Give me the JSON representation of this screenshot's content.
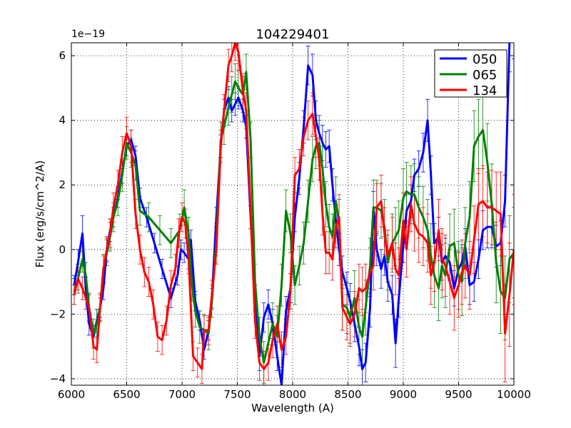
{
  "chart_data": {
    "type": "line",
    "title": "104229401",
    "xlabel": "Wavelength (A)",
    "ylabel": "Flux (erg/s/cm^2/A)",
    "offset_label": "1e−19",
    "xlim": [
      6000,
      10000
    ],
    "ylim": [
      -4.2,
      6.4
    ],
    "xticks": [
      6000,
      6500,
      7000,
      7500,
      8000,
      8500,
      9000,
      9500,
      10000
    ],
    "xtick_labels": [
      "6000",
      "6500",
      "7000",
      "7500",
      "8000",
      "8500",
      "9000",
      "9500",
      "10000"
    ],
    "yticks": [
      -4,
      -2,
      0,
      2,
      4,
      6
    ],
    "ytick_labels": [
      "−4",
      "−2",
      "0",
      "2",
      "4",
      "6"
    ],
    "grid": true,
    "legend_position": "top-right",
    "series": [
      {
        "name": "050",
        "color": "#0000ff",
        "x": [
          6025,
          6060,
          6100,
          6130,
          6160,
          6200,
          6230,
          6260,
          6290,
          6320,
          6350,
          6380,
          6420,
          6460,
          6500,
          6540,
          6580,
          6620,
          6680,
          6750,
          6820,
          6900,
          6960,
          6990,
          7020,
          7060,
          7080,
          7120,
          7160,
          7200,
          7240,
          7270,
          7310,
          7350,
          7380,
          7420,
          7450,
          7480,
          7510,
          7550,
          7580,
          7620,
          7660,
          7700,
          7740,
          7780,
          7820,
          7860,
          7900,
          7940,
          7980,
          8020,
          8060,
          8100,
          8140,
          8180,
          8210,
          8240,
          8270,
          8300,
          8330,
          8360,
          8390,
          8420,
          8450,
          8490,
          8520,
          8560,
          8600,
          8630,
          8660,
          8700,
          8730,
          8760,
          8800,
          8830,
          8860,
          8900,
          8930,
          8960,
          9000,
          9030,
          9070,
          9100,
          9140,
          9180,
          9220,
          9250,
          9280,
          9320,
          9350,
          9380,
          9420,
          9460,
          9500,
          9530,
          9560,
          9600,
          9640,
          9680,
          9720,
          9760,
          9800,
          9840,
          9880,
          9920,
          9960,
          10000
        ],
        "y": [
          -1.1,
          -0.4,
          0.5,
          -1.2,
          -2.3,
          -2.7,
          -2.2,
          -1.8,
          -1.2,
          0.0,
          0.6,
          1.0,
          1.6,
          2.4,
          3.2,
          3.4,
          2.9,
          1.6,
          1.0,
          0.2,
          -0.6,
          -1.5,
          -0.8,
          0.0,
          -0.1,
          -0.3,
          0.3,
          -1.6,
          -2.2,
          -3.1,
          -2.5,
          -1.5,
          1.0,
          3.2,
          4.3,
          4.7,
          4.3,
          4.5,
          4.7,
          4.3,
          3.8,
          1.0,
          -1.5,
          -3.3,
          -2.1,
          -1.7,
          -2.3,
          -3.3,
          -4.2,
          -1.9,
          -1.2,
          1.0,
          2.2,
          3.8,
          5.7,
          5.4,
          4.0,
          3.6,
          3.3,
          3.1,
          3.2,
          2.0,
          0.9,
          0.0,
          -0.7,
          -1.2,
          -1.6,
          -2.3,
          -3.0,
          -3.7,
          -3.5,
          -1.8,
          1.3,
          0.0,
          -0.6,
          -0.2,
          -1.0,
          -1.4,
          -2.9,
          -1.5,
          0.1,
          1.2,
          1.5,
          2.3,
          2.5,
          3.0,
          4.0,
          2.3,
          0.2,
          0.4,
          -0.4,
          -0.2,
          -0.4,
          -1.2,
          -0.6,
          -0.4,
          0.1,
          -1.1,
          -1.0,
          -0.3,
          0.6,
          0.7,
          0.7,
          0.1,
          0.2,
          1.5,
          6.4,
          6.9
        ],
        "err": [
          0.3,
          0.4,
          0.55,
          0.35,
          0.35,
          0.35,
          0.35,
          0.3,
          0.35,
          0.35,
          0.35,
          0.3,
          0.3,
          0.35,
          0.3,
          0.3,
          0.3,
          0.3,
          0.3,
          0.3,
          0.3,
          0.3,
          0.3,
          0.3,
          0.3,
          0.3,
          0.3,
          0.3,
          0.3,
          0.3,
          0.3,
          0.3,
          0.3,
          0.35,
          0.35,
          0.35,
          0.35,
          0.35,
          0.35,
          0.35,
          0.35,
          0.35,
          0.4,
          0.45,
          0.45,
          0.45,
          0.45,
          0.45,
          0.45,
          0.45,
          0.45,
          0.45,
          0.5,
          0.5,
          0.6,
          0.65,
          0.6,
          0.55,
          0.55,
          0.55,
          0.5,
          0.5,
          0.5,
          0.5,
          0.5,
          0.5,
          0.55,
          0.55,
          0.6,
          0.6,
          0.6,
          0.6,
          0.5,
          0.5,
          0.6,
          0.6,
          0.6,
          0.6,
          0.75,
          0.6,
          0.5,
          0.5,
          0.5,
          0.5,
          0.55,
          0.6,
          0.65,
          0.6,
          0.6,
          0.6,
          0.55,
          0.55,
          0.55,
          0.55,
          0.55,
          0.55,
          0.55,
          0.6,
          0.6,
          0.6,
          0.6,
          0.65,
          0.65,
          0.65,
          0.7,
          0.8,
          0.9,
          1.0
        ]
      },
      {
        "name": "065",
        "color": "#008000",
        "x": [
          6025,
          6060,
          6100,
          6130,
          6160,
          6200,
          6230,
          6260,
          6290,
          6320,
          6350,
          6380,
          6420,
          6460,
          6500,
          6540,
          6580,
          6620,
          6700,
          6800,
          6900,
          6980,
          7020,
          7060,
          7090,
          7120,
          7160,
          7200,
          7240,
          7270,
          7310,
          7350,
          7380,
          7420,
          7450,
          7480,
          7510,
          7550,
          7580,
          7620,
          7660,
          7700,
          7740,
          7780,
          7820,
          7860,
          7900,
          7940,
          7980,
          8020,
          8060,
          8100,
          8140,
          8180,
          8210,
          8240,
          8270,
          8300,
          8330,
          8360,
          8390,
          8420,
          8450,
          8490,
          8520,
          8560,
          8600,
          8630,
          8660,
          8700,
          8730,
          8760,
          8800,
          8830,
          8860,
          8900,
          8930,
          8960,
          9000,
          9030,
          9070,
          9100,
          9140,
          9180,
          9220,
          9250,
          9280,
          9320,
          9350,
          9380,
          9420,
          9460,
          9500,
          9530,
          9560,
          9600,
          9640,
          9680,
          9720,
          9760,
          9800,
          9840,
          9880,
          9920,
          9960,
          10000
        ],
        "y": [
          -1.3,
          -0.9,
          -0.3,
          -0.8,
          -1.8,
          -2.6,
          -2.3,
          -1.8,
          -0.6,
          -0.1,
          0.4,
          1.0,
          1.5,
          2.3,
          3.3,
          3.0,
          2.6,
          1.2,
          1.0,
          0.6,
          0.2,
          0.6,
          1.3,
          0.5,
          -1.1,
          -1.9,
          -2.4,
          -2.5,
          -2.6,
          -1.6,
          0.3,
          3.4,
          3.8,
          4.4,
          4.8,
          5.2,
          5.0,
          4.8,
          5.5,
          3.4,
          -1.0,
          -2.7,
          -3.5,
          -2.9,
          -2.3,
          -2.7,
          -1.1,
          1.2,
          0.5,
          -1.1,
          -0.5,
          0.2,
          1.5,
          2.8,
          3.2,
          3.3,
          2.5,
          1.4,
          0.7,
          0.4,
          1.5,
          0.8,
          -1.7,
          -1.8,
          -2.1,
          -1.5,
          -2.4,
          -2.7,
          -1.8,
          -0.5,
          1.3,
          1.3,
          1.2,
          0.7,
          -0.4,
          0.2,
          0.4,
          0.6,
          1.6,
          1.8,
          1.7,
          1.7,
          1.3,
          1.0,
          0.6,
          -0.2,
          -0.8,
          -1.2,
          -0.5,
          -0.8,
          0.1,
          0.2,
          -0.8,
          -1.0,
          0.2,
          1.0,
          3.2,
          3.5,
          3.7,
          2.7,
          1.4,
          -0.4,
          -1.3,
          -1.5,
          -0.3,
          -0.1
        ],
        "err": [
          0.4,
          0.45,
          0.4,
          0.4,
          0.45,
          0.45,
          0.45,
          0.45,
          0.45,
          0.4,
          0.45,
          0.45,
          0.45,
          0.5,
          0.5,
          0.45,
          0.45,
          0.45,
          0.45,
          0.45,
          0.45,
          0.5,
          0.55,
          0.5,
          0.5,
          0.5,
          0.5,
          0.5,
          0.5,
          0.5,
          0.5,
          0.55,
          0.55,
          0.55,
          0.55,
          0.55,
          0.55,
          0.55,
          0.55,
          0.55,
          0.55,
          0.6,
          0.65,
          0.65,
          0.65,
          0.65,
          0.65,
          0.65,
          0.6,
          0.6,
          0.6,
          0.65,
          0.65,
          0.7,
          0.7,
          0.7,
          0.7,
          0.7,
          0.7,
          0.7,
          0.75,
          0.75,
          0.8,
          0.8,
          0.8,
          0.85,
          0.85,
          0.85,
          0.85,
          0.85,
          0.85,
          0.85,
          0.85,
          0.85,
          0.85,
          0.9,
          0.9,
          0.9,
          0.9,
          0.9,
          0.9,
          0.95,
          0.95,
          0.95,
          0.95,
          1.0,
          1.0,
          1.0,
          1.0,
          1.0,
          1.0,
          1.05,
          1.05,
          1.05,
          1.1,
          1.1,
          1.1,
          1.15,
          1.2,
          1.2,
          1.25,
          1.25,
          1.3,
          1.3,
          1.35,
          1.4
        ]
      },
      {
        "name": "134",
        "color": "#ff0000",
        "x": [
          6025,
          6060,
          6100,
          6130,
          6160,
          6200,
          6230,
          6260,
          6290,
          6320,
          6350,
          6380,
          6420,
          6460,
          6500,
          6540,
          6580,
          6620,
          6660,
          6700,
          6740,
          6780,
          6820,
          6860,
          6900,
          6940,
          6970,
          7000,
          7030,
          7060,
          7100,
          7140,
          7180,
          7200,
          7240,
          7270,
          7310,
          7350,
          7380,
          7420,
          7450,
          7480,
          7510,
          7550,
          7580,
          7620,
          7660,
          7700,
          7740,
          7780,
          7820,
          7860,
          7900,
          7940,
          7980,
          8020,
          8060,
          8100,
          8140,
          8180,
          8210,
          8240,
          8270,
          8300,
          8330,
          8360,
          8390,
          8420,
          8450,
          8490,
          8520,
          8560,
          8600,
          8630,
          8660,
          8700,
          8730,
          8760,
          8800,
          8830,
          8860,
          8900,
          8930,
          8960,
          9000,
          9030,
          9070,
          9100,
          9140,
          9180,
          9220,
          9250,
          9280,
          9320,
          9350,
          9380,
          9420,
          9460,
          9500,
          9530,
          9560,
          9600,
          9640,
          9680,
          9720,
          9760,
          9800,
          9840,
          9880,
          9920,
          9960,
          10000
        ],
        "y": [
          -1.4,
          -0.9,
          -1.2,
          -1.5,
          -1.8,
          -3.0,
          -3.1,
          -1.8,
          -0.6,
          0.0,
          0.5,
          1.3,
          2.0,
          3.0,
          3.6,
          3.2,
          1.1,
          0.0,
          -0.7,
          -1.0,
          -1.7,
          -2.7,
          -2.8,
          -2.2,
          -1.1,
          -0.6,
          0.5,
          1.0,
          0.8,
          -0.3,
          -3.3,
          -3.5,
          -3.7,
          -2.5,
          -2.5,
          -1.4,
          0.0,
          3.2,
          4.3,
          5.7,
          6.0,
          6.4,
          6.1,
          4.9,
          4.3,
          1.2,
          -2.2,
          -3.5,
          -3.7,
          -3.5,
          -2.8,
          -2.3,
          -3.1,
          -2.7,
          -1.3,
          2.3,
          2.5,
          3.5,
          4.0,
          4.2,
          3.5,
          2.8,
          1.1,
          -0.1,
          -0.1,
          -0.3,
          0.7,
          1.0,
          -1.8,
          -2.1,
          -2.3,
          -2.0,
          -1.2,
          -1.3,
          -1.2,
          -0.7,
          -0.5,
          1.3,
          1.5,
          0.5,
          -0.2,
          0.2,
          -0.6,
          -0.8,
          0.9,
          0.0,
          1.4,
          0.8,
          0.5,
          0.4,
          0.2,
          -0.8,
          -0.4,
          0.6,
          -0.3,
          -0.5,
          -1.0,
          -1.5,
          -1.1,
          -0.7,
          -0.5,
          -0.8,
          0.3,
          1.4,
          1.5,
          1.3,
          1.3,
          1.2,
          1.1,
          -2.6,
          -1.4,
          0.0
        ],
        "err": [
          0.3,
          0.35,
          0.35,
          0.35,
          0.4,
          0.4,
          0.4,
          0.4,
          0.4,
          0.4,
          0.45,
          0.45,
          0.45,
          0.5,
          0.5,
          0.5,
          0.45,
          0.45,
          0.45,
          0.45,
          0.45,
          0.45,
          0.45,
          0.45,
          0.45,
          0.45,
          0.45,
          0.45,
          0.45,
          0.45,
          0.45,
          0.45,
          0.45,
          0.45,
          0.45,
          0.45,
          0.45,
          0.5,
          0.5,
          0.5,
          0.5,
          0.55,
          0.55,
          0.55,
          0.55,
          0.55,
          0.55,
          0.55,
          0.55,
          0.55,
          0.55,
          0.55,
          0.55,
          0.55,
          0.55,
          0.55,
          0.6,
          0.6,
          0.6,
          0.65,
          0.65,
          0.65,
          0.65,
          0.65,
          0.65,
          0.65,
          0.65,
          0.7,
          0.7,
          0.7,
          0.7,
          0.7,
          0.75,
          0.75,
          0.75,
          0.75,
          0.75,
          0.75,
          0.8,
          0.8,
          0.8,
          0.8,
          0.8,
          0.85,
          0.85,
          0.85,
          0.85,
          0.85,
          0.9,
          0.9,
          0.9,
          0.9,
          0.9,
          0.95,
          0.95,
          0.95,
          1.0,
          1.0,
          1.0,
          1.0,
          1.0,
          1.05,
          1.05,
          1.1,
          1.1,
          1.1,
          1.15,
          1.2,
          1.3,
          1.5,
          1.6,
          1.7
        ]
      }
    ]
  }
}
